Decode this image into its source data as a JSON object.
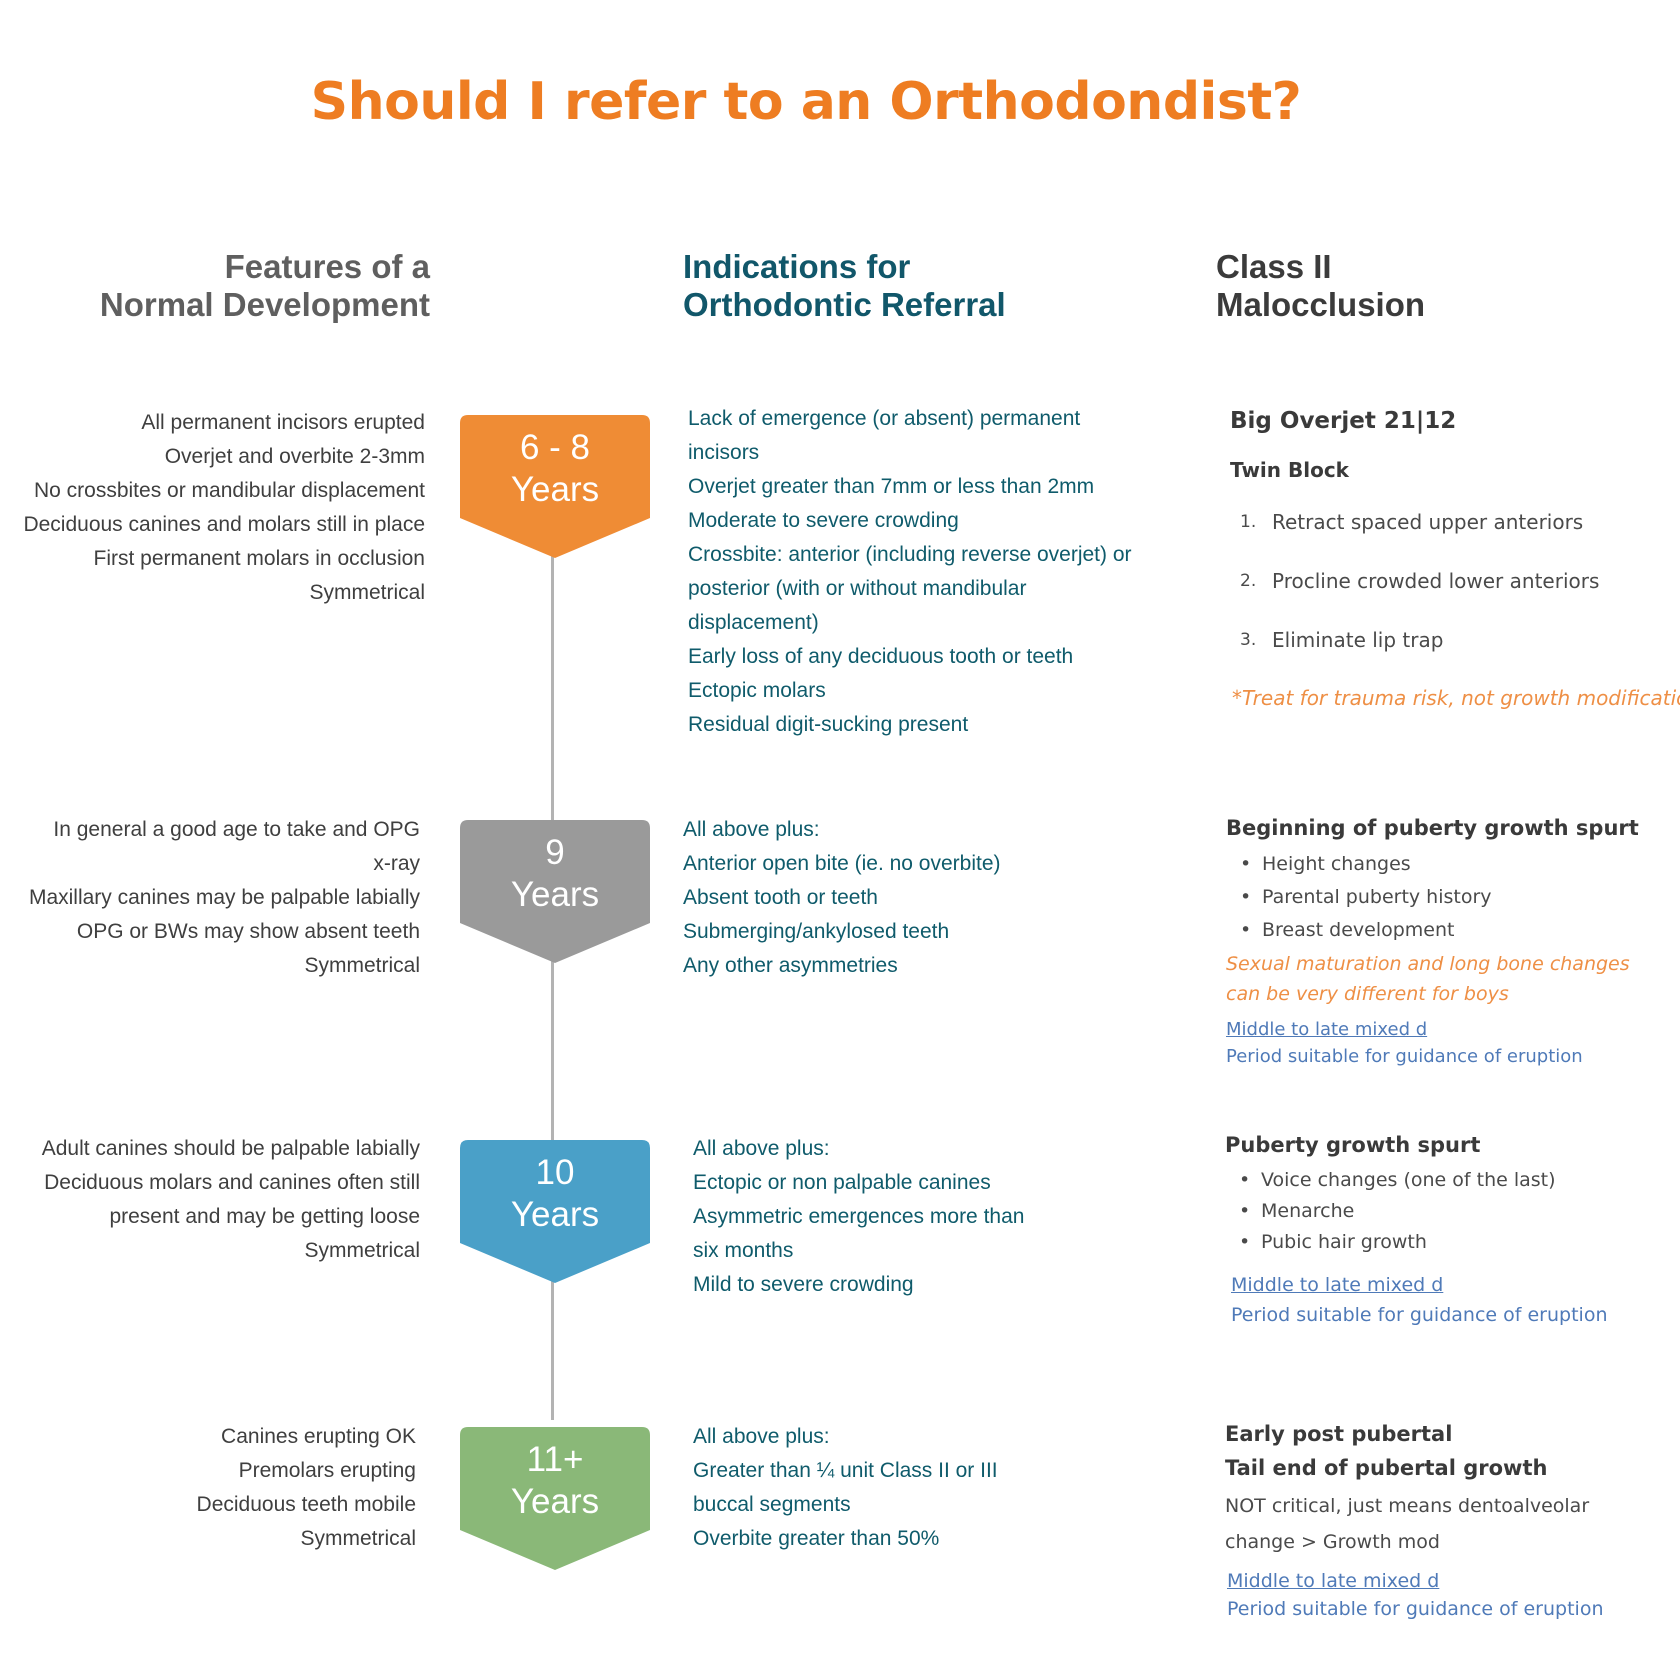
{
  "title": "Should I refer to an Orthodondist?",
  "columns": {
    "left": {
      "line1": "Features of a",
      "line2": "Normal Development"
    },
    "middle": {
      "line1": "Indications for",
      "line2": "Orthodontic Referral"
    },
    "right": {
      "line1": "Class II",
      "line2": "Malocclusion"
    }
  },
  "colors": {
    "accent": "#ee7d22",
    "stage1": "#ef8c35",
    "stage2": "#9a9a9a",
    "stage3": "#4aa0c8",
    "stage4": "#8ab878",
    "teal_text": "#0f5b6b",
    "link_blue": "#4f7ab8"
  },
  "stages": [
    {
      "badge": {
        "line1": "6 - 8",
        "line2": "Years"
      },
      "normal": [
        "All permanent incisors erupted",
        "Overjet and overbite 2-3mm",
        "No crossbites or mandibular displacement",
        "Deciduous canines and molars still in place",
        "First permanent molars in occlusion",
        "Symmetrical"
      ],
      "indications": [
        "Lack of emergence (or absent) permanent",
        "incisors",
        "Overjet greater than  7mm or less than 2mm",
        "Moderate to severe crowding",
        "Crossbite: anterior (including reverse overjet) or",
        "posterior (with or without mandibular",
        "displacement)",
        "Early loss of any deciduous tooth or teeth",
        "Ectopic molars",
        "Residual digit-sucking present"
      ],
      "class2": {
        "heading": "Big Overjet 21|12",
        "subheading": "Twin Block",
        "steps": [
          {
            "num": "1.",
            "text": "Retract spaced upper anteriors"
          },
          {
            "num": "2.",
            "text": "Procline crowded lower anteriors"
          },
          {
            "num": "3.",
            "text": "Eliminate lip trap"
          }
        ],
        "note": "*Treat for trauma risk, not growth modification"
      }
    },
    {
      "badge": {
        "line1": "9",
        "line2": "Years"
      },
      "normal": [
        "In general a good age to take and OPG",
        "x-ray",
        "Maxillary canines may be palpable labially",
        "OPG or BWs may show absent teeth",
        "Symmetrical"
      ],
      "indications": [
        "All above plus:",
        "Anterior open bite (ie. no overbite)",
        "Absent tooth or teeth",
        "Submerging/ankylosed teeth",
        "Any other asymmetries"
      ],
      "class2": {
        "heading": "Beginning of puberty growth spurt",
        "bullets": [
          "Height changes",
          "Parental puberty history",
          "Breast development"
        ],
        "note_lines": [
          "Sexual maturation and long bone changes",
          "can be very different for boys"
        ],
        "link": "Middle to late mixed d",
        "link_note": "Period suitable for guidance of eruption"
      }
    },
    {
      "badge": {
        "line1": "10",
        "line2": "Years"
      },
      "normal": [
        "Adult canines should be palpable labially",
        "Deciduous molars and canines often still",
        "present and may be getting loose",
        "Symmetrical"
      ],
      "indications": [
        "All above plus:",
        "Ectopic or non palpable canines",
        "Asymmetric emergences more than",
        "six months",
        "Mild to severe crowding"
      ],
      "class2": {
        "heading": "Puberty growth spurt",
        "bullets": [
          "Voice changes (one of the last)",
          "Menarche",
          "Pubic hair growth"
        ],
        "link": "Middle to late mixed d",
        "link_note": "Period suitable for guidance of eruption"
      }
    },
    {
      "badge": {
        "line1": "11+",
        "line2": "Years"
      },
      "normal": [
        "Canines erupting OK",
        "Premolars erupting",
        "Deciduous teeth mobile",
        "Symmetrical"
      ],
      "indications": [
        "All above plus:",
        "Greater than ¼ unit Class II or III",
        "buccal segments",
        "Overbite greater than 50%"
      ],
      "class2": {
        "heading": "Early post pubertal",
        "subheading": "Tail end of pubertal growth",
        "text_lines": [
          "NOT critical, just means dentoalveolar",
          "change > Growth mod"
        ],
        "link": "Middle to late mixed d",
        "link_note": "Period suitable for guidance of eruption"
      }
    }
  ]
}
